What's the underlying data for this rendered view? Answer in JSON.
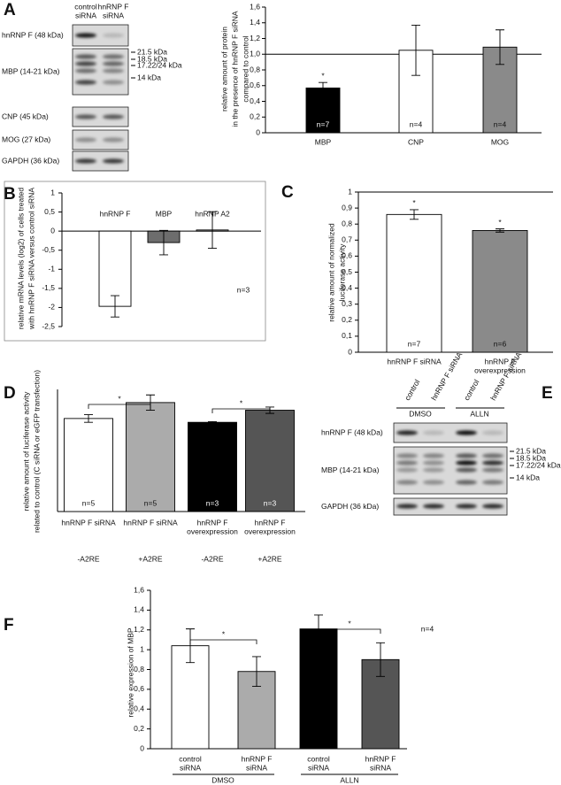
{
  "panel_letters": [
    "A",
    "B",
    "C",
    "D",
    "E",
    "F"
  ],
  "blots": [
    {
      "lane_labels": [
        [
          "control",
          "siRNA"
        ],
        [
          "hnRNP F",
          "siRNA"
        ]
      ],
      "rows": [
        "hnRNP F (48 kDa)",
        "MBP (14-21 kDa)",
        "CNP (45 kDa)",
        "MOG (27 kDa)",
        "GAPDH (36 kDa)"
      ],
      "markers": [
        "21.5 kDa",
        "18.5 kDa",
        "17.22/24 kDa",
        "14 kDa"
      ]
    },
    {
      "lane_labels": [
        [
          "control"
        ],
        [
          "hnRNP F siRNA"
        ],
        [
          "control"
        ],
        [
          "hnRNP F siRNA"
        ]
      ],
      "treatments": [
        "DMSO",
        "ALLN"
      ],
      "rows": [
        "hnRNP F (48 kDa)",
        "MBP (14-21 kDa)",
        "GAPDH (36 kDa)"
      ],
      "markers": [
        "21.5 kDa",
        "18.5 kDa",
        "17.22/24 kDa",
        "14 kDa"
      ]
    }
  ],
  "chart_data": [
    {
      "type": "bar",
      "ylabel_lines": [
        "relative amount of protein",
        "in the presence of hnRNP F siRNA",
        "compared to control"
      ],
      "categories": [
        [
          "MBP"
        ],
        [
          "CNP"
        ],
        [
          "MOG"
        ]
      ],
      "values": [
        0.57,
        1.05,
        1.09
      ],
      "errors": [
        0.07,
        0.32,
        0.22
      ],
      "colors": [
        "#000000",
        "#ffffff",
        "#8a8a8a"
      ],
      "bar_labels": [
        "n=7",
        "n=4",
        "n=4"
      ],
      "markers": [
        "*",
        null,
        null
      ],
      "reference_line": 1,
      "ylim": [
        0,
        1.6
      ],
      "yticks": [
        0,
        {
          "value": 0.2,
          "label": "0,2"
        },
        {
          "value": 0.4,
          "label": "0,4"
        },
        {
          "value": 0.6,
          "label": "0,6"
        },
        {
          "value": 0.8,
          "label": "0,8"
        },
        {
          "value": 1,
          "label": "1,0"
        },
        {
          "value": 1.2,
          "label": "1,2"
        },
        {
          "value": 1.4,
          "label": "1,4"
        },
        {
          "value": 1.6,
          "label": "1,6"
        }
      ]
    },
    {
      "type": "bar",
      "ylabel_lines": [
        "relative mRNA levels (log2) of cells treated",
        "with hnRNP F siRNA  versus control siRNA"
      ],
      "categories": [
        [
          "hnRNP F"
        ],
        [
          "MBP"
        ],
        [
          "hnRNP A2"
        ]
      ],
      "values": [
        -1.97,
        -0.3,
        0.03
      ],
      "errors": [
        0.28,
        0.32,
        0.48
      ],
      "colors": [
        "#ffffff",
        "#6d6d6d",
        "#9a9a9a"
      ],
      "annotation": "n=3",
      "ylim": [
        -2.5,
        1
      ],
      "yticks": [
        {
          "value": -2.5,
          "label": "-2,5"
        },
        -2,
        {
          "value": -1.5,
          "label": "-1,5"
        },
        -1,
        {
          "value": -0.5,
          "label": "-0,5"
        },
        0,
        {
          "value": 0.5,
          "label": "0,5"
        },
        1
      ]
    },
    {
      "type": "bar",
      "ylabel_lines": [
        "relative amount of normalized",
        "luciferase activity"
      ],
      "categories": [
        [
          "hnRNP F siRNA"
        ],
        [
          "hnRNP F",
          "overexpression"
        ]
      ],
      "values": [
        0.86,
        0.76
      ],
      "errors": [
        0.03,
        0.01
      ],
      "colors": [
        "#ffffff",
        "#8a8a8a"
      ],
      "bar_labels": [
        "n=7",
        "n=6"
      ],
      "markers": [
        "*",
        "*"
      ],
      "reference_line": 1,
      "ylim": [
        0,
        1
      ],
      "yticks": [
        0,
        {
          "value": 0.1,
          "label": "0,1"
        },
        {
          "value": 0.2,
          "label": "0,2"
        },
        {
          "value": 0.3,
          "label": "0,3"
        },
        {
          "value": 0.4,
          "label": "0,4"
        },
        {
          "value": 0.5,
          "label": "0,5"
        },
        {
          "value": 0.6,
          "label": "0,6"
        },
        {
          "value": 0.7,
          "label": "0,7"
        },
        {
          "value": 0.8,
          "label": "0,8"
        },
        {
          "value": 0.9,
          "label": "0,9"
        },
        1
      ]
    },
    {
      "type": "bar",
      "ylabel_lines": [
        "relative amount of luciferase activity",
        "related to control (C siRNA or eGFP transfection)"
      ],
      "categories": [
        [
          "hnRNP F siRNA"
        ],
        [
          "hnRNP F siRNA"
        ],
        [
          "hnRNP F",
          "overexpression"
        ],
        [
          "hnRNP F",
          "overexpression"
        ]
      ],
      "values": [
        0.73,
        0.855,
        0.7,
        0.795
      ],
      "errors": [
        0.03,
        0.06,
        0.005,
        0.025
      ],
      "colors": [
        "#ffffff",
        "#ababab",
        "#000000",
        "#555555"
      ],
      "bar_labels": [
        "n=5",
        "n=5",
        "n=3",
        "n=3"
      ],
      "group_labels": [
        "-A2RE",
        "+A2RE",
        "-A2RE",
        "+A2RE"
      ],
      "significance": [
        "*",
        "*"
      ],
      "ylim": [
        0,
        1
      ]
    },
    {
      "type": "bar",
      "ylabel_lines": [
        "relative expression of MBP"
      ],
      "categories": [
        [
          "control",
          "siRNA"
        ],
        [
          "hnRNP F",
          "siRNA"
        ],
        [
          "control",
          "siRNA"
        ],
        [
          "hnRNP F",
          "siRNA"
        ]
      ],
      "values": [
        1.04,
        0.78,
        1.21,
        0.9
      ],
      "errors": [
        0.17,
        0.15,
        0.14,
        0.17
      ],
      "colors": [
        "#ffffff",
        "#ababab",
        "#000000",
        "#555555"
      ],
      "group_labels": [
        "DMSO",
        "ALLN"
      ],
      "significance": [
        "*",
        "*"
      ],
      "annotation": "n=4",
      "ylim": [
        0,
        1.6
      ],
      "yticks": [
        0,
        {
          "value": 0.2,
          "label": "0,2"
        },
        {
          "value": 0.4,
          "label": "0,4"
        },
        {
          "value": 0.6,
          "label": "0,6"
        },
        {
          "value": 0.8,
          "label": "0,8"
        },
        1,
        {
          "value": 1.2,
          "label": "1,2"
        },
        {
          "value": 1.4,
          "label": "1,4"
        },
        {
          "value": 1.6,
          "label": "1,6"
        }
      ]
    }
  ]
}
